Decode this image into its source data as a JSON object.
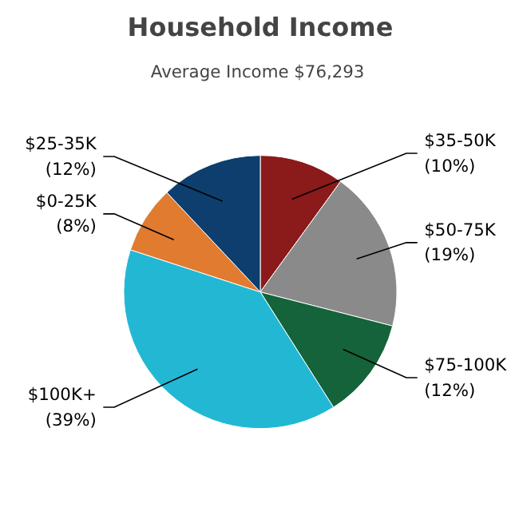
{
  "chart_data": {
    "type": "pie",
    "title": "Household Income",
    "subtitle": "Average Income  $76,293",
    "categories": [
      "$35-50K",
      "$50-75K",
      "$75-100K",
      "$100K+",
      "$0-25K",
      "$25-35K"
    ],
    "values": [
      10,
      19,
      12,
      39,
      8,
      12
    ],
    "value_labels": [
      "(10%)",
      "(19%)",
      "(12%)",
      "(39%)",
      "(8%)",
      "(12%)"
    ],
    "colors": [
      "#8b1a1a",
      "#8a8a8a",
      "#14633a",
      "#22b8d4",
      "#e07b30",
      "#0d3e6e"
    ]
  }
}
